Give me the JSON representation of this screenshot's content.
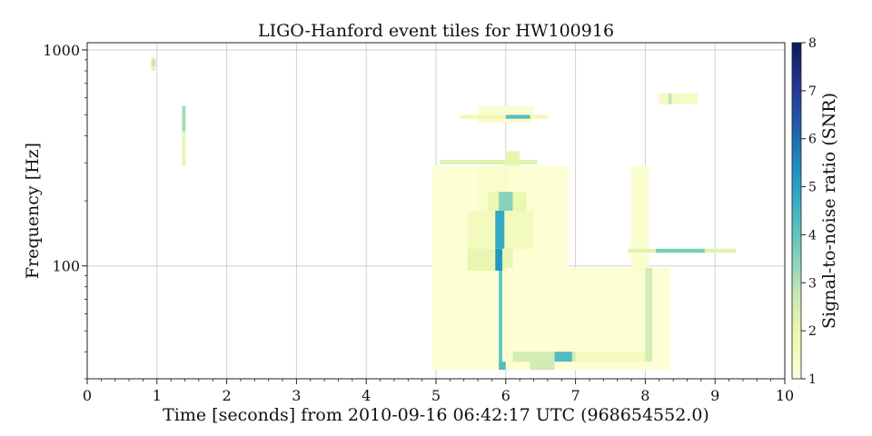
{
  "chart_data": {
    "type": "heatmap",
    "title": "LIGO-Hanford event tiles for HW100916",
    "xlabel": "Time [seconds] from 2010-09-16 06:42:17 UTC (968654552.0)",
    "ylabel": "Frequency [Hz]",
    "xlim": [
      0,
      10
    ],
    "ylim": [
      30,
      1080
    ],
    "yscale": "log",
    "x_ticks": [
      "0",
      "1",
      "2",
      "3",
      "4",
      "5",
      "6",
      "7",
      "8",
      "9",
      "10"
    ],
    "y_ticks": [
      "100",
      "1000"
    ],
    "grid": true,
    "colorbar": {
      "label": "Signal-to-noise ratio (SNR)",
      "range": [
        1,
        8
      ],
      "ticks": [
        "1",
        "2",
        "3",
        "4",
        "5",
        "6",
        "7",
        "8"
      ],
      "colormap": [
        "#ffffd9",
        "#edf8b1",
        "#c7e9b4",
        "#7fcdbb",
        "#41b6c4",
        "#1d91c0",
        "#225ea8",
        "#253494",
        "#081d58"
      ]
    },
    "tiles": [
      {
        "t0": 0.92,
        "t1": 0.98,
        "f0": 800,
        "f1": 920,
        "snr": 2.1
      },
      {
        "t0": 0.92,
        "t1": 0.98,
        "f0": 840,
        "f1": 900,
        "snr": 2.8
      },
      {
        "t0": 1.36,
        "t1": 1.41,
        "f0": 290,
        "f1": 550,
        "snr": 2.0
      },
      {
        "t0": 1.36,
        "t1": 1.41,
        "f0": 420,
        "f1": 550,
        "snr": 3.2
      },
      {
        "t0": 5.6,
        "t1": 6.4,
        "f0": 460,
        "f1": 550,
        "snr": 1.2
      },
      {
        "t0": 5.35,
        "t1": 6.6,
        "f0": 480,
        "f1": 500,
        "snr": 1.8
      },
      {
        "t0": 6.0,
        "t1": 6.35,
        "f0": 480,
        "f1": 500,
        "snr": 4.2
      },
      {
        "t0": 5.05,
        "t1": 6.45,
        "f0": 295,
        "f1": 310,
        "snr": 2.2
      },
      {
        "t0": 6.0,
        "t1": 6.2,
        "f0": 290,
        "f1": 340,
        "snr": 2.0
      },
      {
        "t0": 4.95,
        "t1": 6.9,
        "f0": 33,
        "f1": 290,
        "snr": 1.1
      },
      {
        "t0": 5.6,
        "t1": 6.05,
        "f0": 180,
        "f1": 290,
        "snr": 1.3
      },
      {
        "t0": 5.75,
        "t1": 6.3,
        "f0": 180,
        "f1": 220,
        "snr": 1.9
      },
      {
        "t0": 5.9,
        "t1": 6.1,
        "f0": 180,
        "f1": 220,
        "snr": 3.5
      },
      {
        "t0": 5.45,
        "t1": 6.4,
        "f0": 120,
        "f1": 180,
        "snr": 1.6
      },
      {
        "t0": 5.85,
        "t1": 5.98,
        "f0": 120,
        "f1": 180,
        "snr": 4.8
      },
      {
        "t0": 5.45,
        "t1": 6.1,
        "f0": 95,
        "f1": 120,
        "snr": 2.0
      },
      {
        "t0": 5.85,
        "t1": 5.95,
        "f0": 95,
        "f1": 120,
        "snr": 5.2
      },
      {
        "t0": 5.9,
        "t1": 5.95,
        "f0": 36,
        "f1": 95,
        "snr": 4.0
      },
      {
        "t0": 5.9,
        "t1": 6.15,
        "f0": 33,
        "f1": 36,
        "snr": 4.2
      },
      {
        "t0": 6.0,
        "t1": 8.35,
        "f0": 33,
        "f1": 98,
        "snr": 1.1
      },
      {
        "t0": 6.1,
        "t1": 8.1,
        "f0": 36,
        "f1": 40,
        "snr": 1.6
      },
      {
        "t0": 6.1,
        "t1": 7.0,
        "f0": 36,
        "f1": 40,
        "snr": 2.5
      },
      {
        "t0": 6.7,
        "t1": 6.95,
        "f0": 36,
        "f1": 40,
        "snr": 4.3
      },
      {
        "t0": 6.35,
        "t1": 6.7,
        "f0": 33,
        "f1": 36,
        "snr": 2.6
      },
      {
        "t0": 7.8,
        "t1": 8.05,
        "f0": 96,
        "f1": 290,
        "snr": 1.2
      },
      {
        "t0": 8.0,
        "t1": 8.1,
        "f0": 36,
        "f1": 98,
        "snr": 2.5
      },
      {
        "t0": 7.75,
        "t1": 9.3,
        "f0": 115,
        "f1": 120,
        "snr": 2.2
      },
      {
        "t0": 8.15,
        "t1": 8.85,
        "f0": 115,
        "f1": 120,
        "snr": 3.7
      },
      {
        "t0": 8.2,
        "t1": 8.75,
        "f0": 560,
        "f1": 630,
        "snr": 1.5
      },
      {
        "t0": 8.33,
        "t1": 8.38,
        "f0": 560,
        "f1": 630,
        "snr": 2.8
      }
    ]
  }
}
